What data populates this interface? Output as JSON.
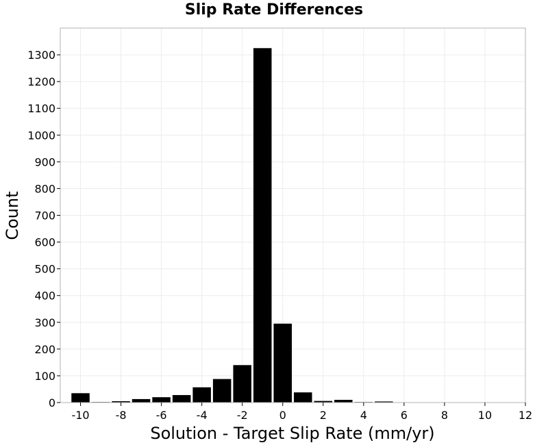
{
  "chart_data": {
    "type": "bar",
    "title": "Slip Rate Differences",
    "xlabel": "Solution - Target Slip Rate (mm/yr)",
    "ylabel": "Count",
    "xlim": [
      -11,
      12
    ],
    "ylim": [
      0,
      1400
    ],
    "xticks": [
      -10,
      -8,
      -6,
      -4,
      -2,
      0,
      2,
      4,
      6,
      8,
      10,
      12
    ],
    "yticks": [
      0,
      100,
      200,
      300,
      400,
      500,
      600,
      700,
      800,
      900,
      1000,
      1100,
      1200,
      1300
    ],
    "grid": true,
    "bar_color": "#000000",
    "x": [
      -10,
      -9,
      -8,
      -7,
      -6,
      -5,
      -4,
      -3,
      -2,
      -1,
      0,
      1,
      2,
      3,
      4,
      5,
      6
    ],
    "values": [
      35,
      2,
      5,
      13,
      20,
      28,
      57,
      88,
      140,
      1325,
      295,
      38,
      6,
      10,
      2,
      4,
      1
    ]
  }
}
